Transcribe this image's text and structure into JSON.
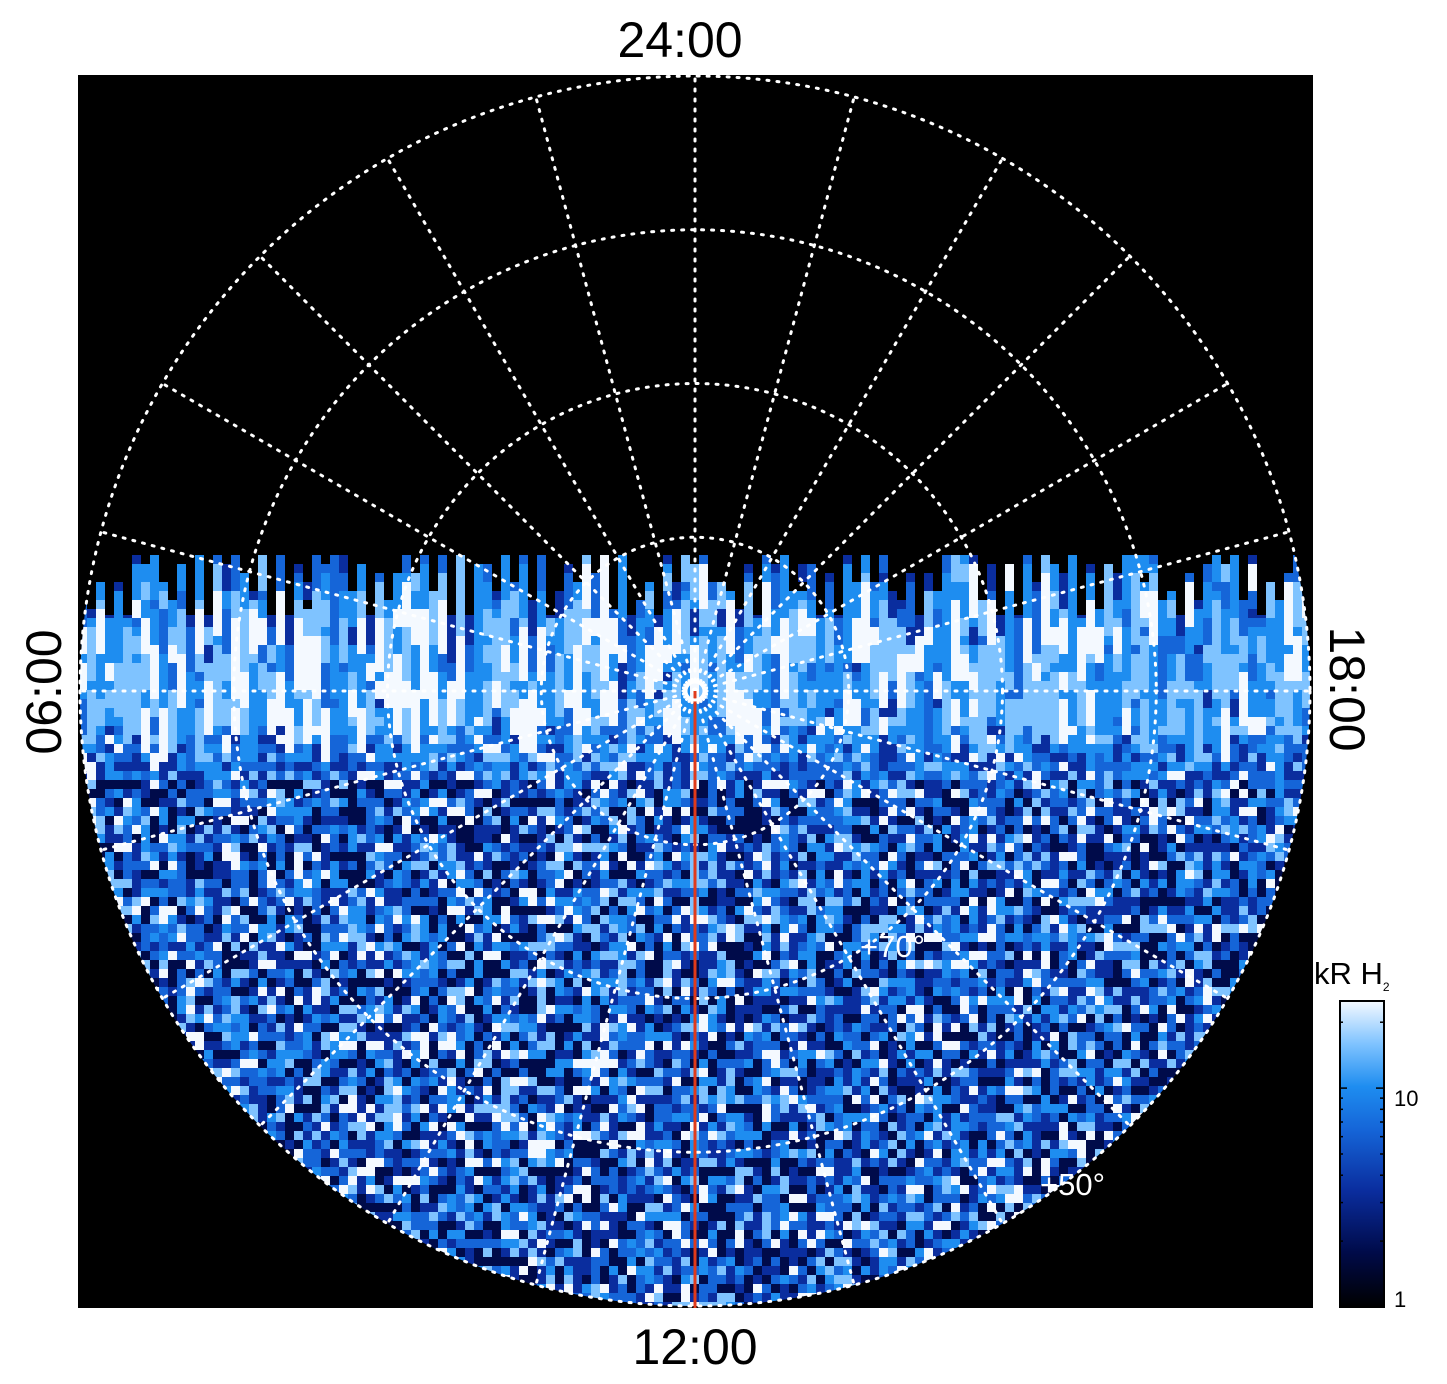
{
  "local_time_labels": {
    "top": "24:00",
    "bottom": "12:00",
    "left": "06:00",
    "right": "18:00"
  },
  "latitude_labels": {
    "inner": "+70°",
    "outer": "+50°"
  },
  "colorbar": {
    "title": "kR H",
    "title_subscript": "2",
    "ticks": [
      "10",
      "1"
    ],
    "scale": "log",
    "colors": [
      "#000000",
      "#000b4a",
      "#0a2d9e",
      "#1565d8",
      "#1e8df0",
      "#7fc3ff",
      "#f4f9ff"
    ]
  },
  "colors": {
    "background": "#000000",
    "grid": "#ffffff",
    "meridian_line": "#e03a1a"
  },
  "projection": {
    "view": "north polar, dayside at bottom",
    "hemisphere_coverage": "lower half filled, upper half blank"
  }
}
